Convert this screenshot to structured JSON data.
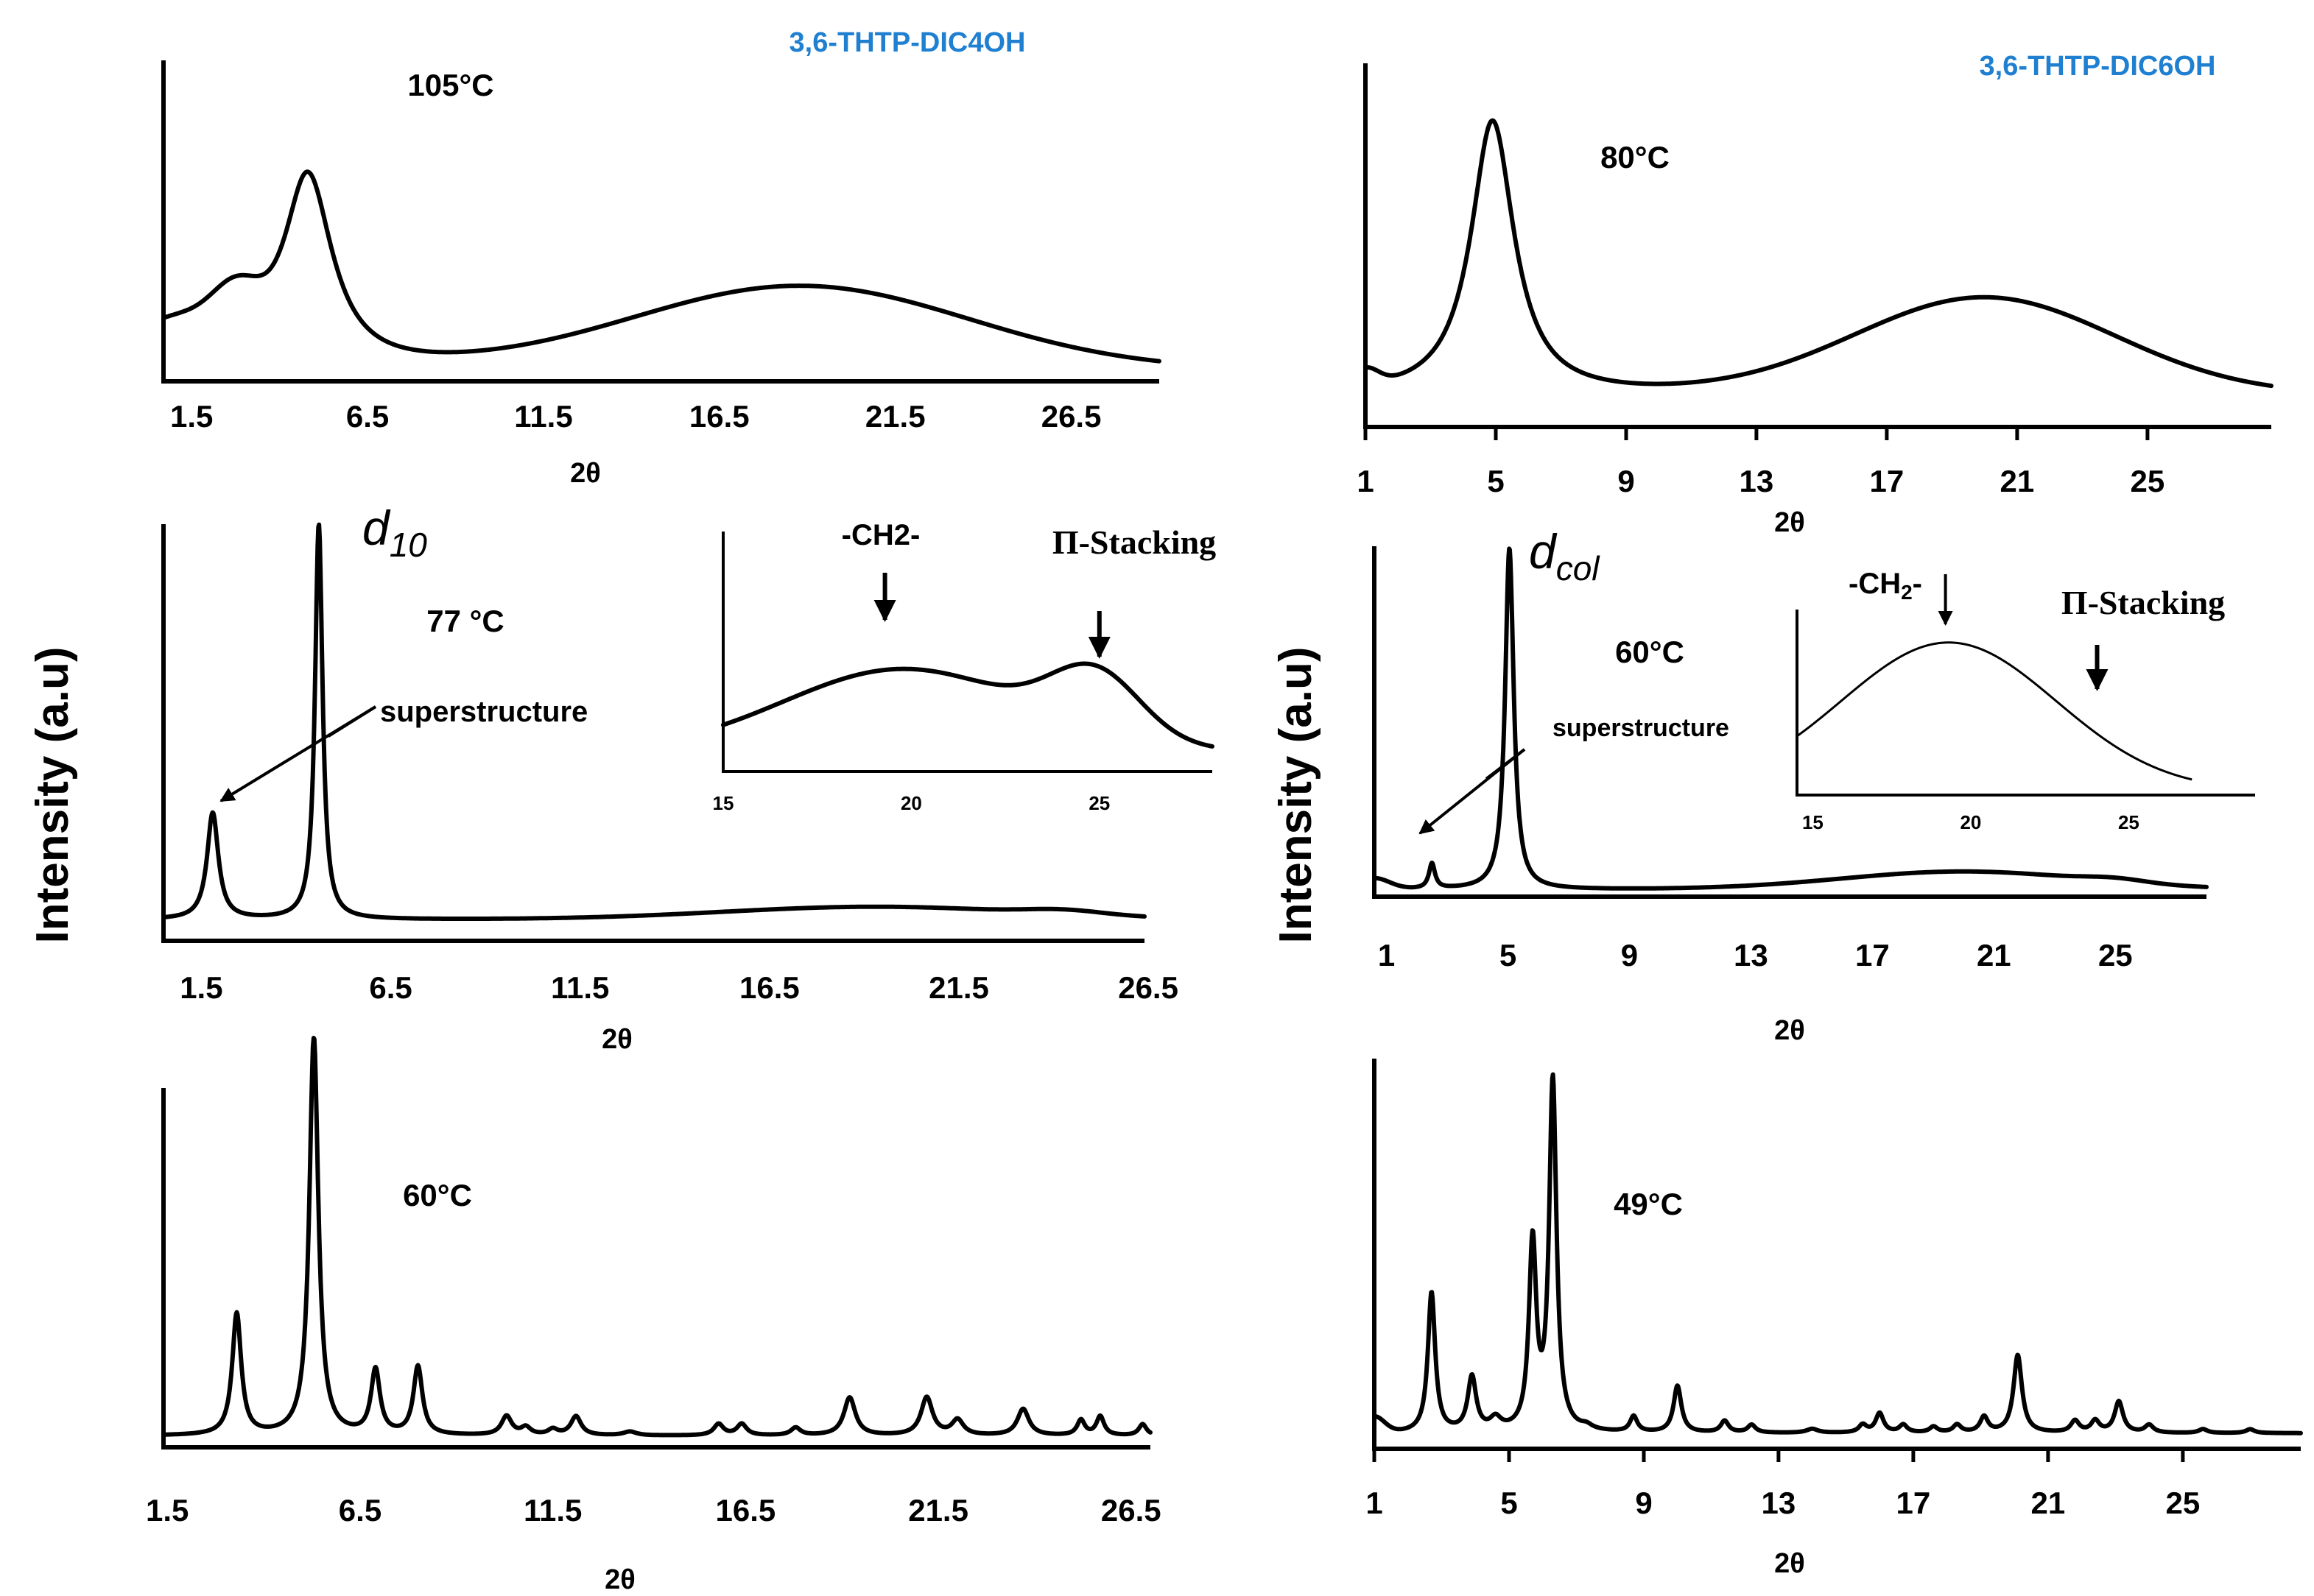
{
  "figure": {
    "left_compound": "3,6-THTP-DIC4OH",
    "right_compound": "3,6-THTP-DIC6OH",
    "y_axis_label": "Intensity (a.u)",
    "colors": {
      "compound_label": "#1f7fd0",
      "curve": "#000000"
    }
  },
  "chart_data": [
    {
      "id": "c4_105",
      "type": "line",
      "title": "105°C",
      "xlabel": "2θ",
      "xticks": [
        1.5,
        6.5,
        11.5,
        16.5,
        21.5,
        26.5
      ],
      "xtick_labels": [
        "1.5",
        "6.5",
        "11.5",
        "16.5",
        "21.5",
        "26.5"
      ],
      "xlim": [
        0.7,
        29.0
      ],
      "ylim": [
        0,
        1.05
      ],
      "baseline": 0.04,
      "peaks": [
        {
          "x": 4.8,
          "h": 0.7,
          "w": 0.85,
          "shape": "lorentz"
        },
        {
          "x": 2.8,
          "h": 0.16,
          "w": 0.7,
          "shape": "gauss"
        },
        {
          "x": 18.8,
          "h": 0.3,
          "w": 4.8,
          "shape": "gauss"
        },
        {
          "x": 1.0,
          "h": 0.16,
          "w": 1.4,
          "shape": "gauss"
        }
      ]
    },
    {
      "id": "c6_80",
      "type": "line",
      "title": "80°C",
      "xlabel": "2θ",
      "xticks": [
        1,
        5,
        9,
        13,
        17,
        21,
        25
      ],
      "xtick_labels": [
        "1",
        "5",
        "9",
        "13",
        "17",
        "21",
        "25"
      ],
      "xlim": [
        1,
        28.8
      ],
      "ylim": [
        0,
        1.05
      ],
      "baseline": 0.1,
      "peaks": [
        {
          "x": 4.9,
          "h": 0.85,
          "w": 0.8,
          "shape": "lorentz"
        },
        {
          "x": 20.0,
          "h": 0.3,
          "w": 4.0,
          "shape": "gauss"
        },
        {
          "x": 1.0,
          "h": 0.05,
          "w": 0.4,
          "shape": "gauss"
        }
      ]
    },
    {
      "id": "c4_77",
      "type": "line",
      "title": "77 °C",
      "xlabel": "2θ",
      "xticks": [
        1.5,
        6.5,
        11.5,
        16.5,
        21.5,
        26.5
      ],
      "xtick_labels": [
        "1.5",
        "6.5",
        "11.5",
        "16.5",
        "21.5",
        "26.5"
      ],
      "xlim": [
        0.5,
        26.4
      ],
      "ylim": [
        0,
        1.0
      ],
      "baseline": 0.05,
      "peaks": [
        {
          "x": 4.6,
          "h": 0.93,
          "w": 0.12,
          "shape": "lorentz"
        },
        {
          "x": 1.8,
          "h": 0.25,
          "w": 0.18,
          "shape": "lorentz"
        },
        {
          "x": 19.3,
          "h": 0.03,
          "w": 4.0,
          "shape": "gauss"
        },
        {
          "x": 24.3,
          "h": 0.01,
          "w": 1.0,
          "shape": "gauss"
        }
      ],
      "annotations": {
        "d_label": "d",
        "d_subscript": "10",
        "superstructure": "superstructure"
      },
      "inset": {
        "xticks": [
          15,
          20,
          25
        ],
        "xtick_labels": [
          "15",
          "20",
          "25"
        ],
        "xlim": [
          15,
          28
        ],
        "labels": {
          "ch2": "-CH2-",
          "pi_stacking": "Π-Stacking"
        },
        "arrow_x": {
          "ch2": 19.3,
          "pi_stacking": 25.0
        },
        "baseline": 0.1,
        "peaks": [
          {
            "x": 19.8,
            "h": 0.42,
            "w": 3.2,
            "shape": "gauss"
          },
          {
            "x": 24.9,
            "h": 0.32,
            "w": 1.2,
            "shape": "gauss"
          }
        ]
      }
    },
    {
      "id": "c6_60",
      "type": "line",
      "title": "60°C",
      "xlabel": "2θ",
      "xticks": [
        1,
        5,
        9,
        13,
        17,
        21,
        25
      ],
      "xtick_labels": [
        "1",
        "5",
        "9",
        "13",
        "17",
        "21",
        "25"
      ],
      "xlim": [
        0.6,
        28.0
      ],
      "ylim": [
        0,
        1.0
      ],
      "baseline": 0.02,
      "peaks": [
        {
          "x": 5.05,
          "h": 0.95,
          "w": 0.17,
          "shape": "lorentz"
        },
        {
          "x": 2.5,
          "h": 0.07,
          "w": 0.12,
          "shape": "lorentz"
        },
        {
          "x": 20.0,
          "h": 0.05,
          "w": 4.0,
          "shape": "gauss"
        },
        {
          "x": 25.0,
          "h": 0.01,
          "w": 1.0,
          "shape": "gauss"
        },
        {
          "x": 0.6,
          "h": 0.03,
          "w": 0.5,
          "shape": "gauss"
        }
      ],
      "annotations": {
        "d_label": "d",
        "d_subscript": "col",
        "superstructure": "superstructure"
      },
      "inset": {
        "xticks": [
          15,
          20,
          25
        ],
        "xtick_labels": [
          "15",
          "20",
          "25"
        ],
        "xlim": [
          14.5,
          29.0
        ],
        "labels": {
          "ch2_main": "-CH",
          "ch2_sub": "2",
          "ch2_tail": "-",
          "pi_stacking": "Π-Stacking"
        },
        "arrow_x": {
          "ch2": 19.2,
          "pi_stacking": 24.0
        },
        "curve_xlim": [
          14.5,
          27.0
        ],
        "baseline": 0.02,
        "peaks": [
          {
            "x": 19.3,
            "h": 0.72,
            "w": 3.4,
            "shape": "gauss"
          }
        ]
      }
    },
    {
      "id": "c4_60",
      "type": "line",
      "title": "60°C",
      "xlabel": "2θ",
      "xticks": [
        1.5,
        6.5,
        11.5,
        16.5,
        21.5,
        26.5
      ],
      "xtick_labels": [
        "1.5",
        "6.5",
        "11.5",
        "16.5",
        "21.5",
        "26.5"
      ],
      "xlim": [
        1.4,
        27.0
      ],
      "ylim": [
        0,
        1.0
      ],
      "baseline": 0.03,
      "peaks": [
        {
          "x": 5.3,
          "h": 1.05,
          "w": 0.14,
          "shape": "lorentz"
        },
        {
          "x": 3.3,
          "h": 0.32,
          "w": 0.14,
          "shape": "lorentz"
        },
        {
          "x": 6.9,
          "h": 0.17,
          "w": 0.14,
          "shape": "lorentz"
        },
        {
          "x": 8.0,
          "h": 0.18,
          "w": 0.14,
          "shape": "lorentz"
        },
        {
          "x": 10.3,
          "h": 0.05,
          "w": 0.16,
          "shape": "lorentz"
        },
        {
          "x": 10.8,
          "h": 0.02,
          "w": 0.15,
          "shape": "lorentz"
        },
        {
          "x": 11.5,
          "h": 0.015,
          "w": 0.15,
          "shape": "lorentz"
        },
        {
          "x": 12.1,
          "h": 0.05,
          "w": 0.16,
          "shape": "lorentz"
        },
        {
          "x": 13.5,
          "h": 0.01,
          "w": 0.2,
          "shape": "lorentz"
        },
        {
          "x": 15.8,
          "h": 0.03,
          "w": 0.15,
          "shape": "lorentz"
        },
        {
          "x": 16.4,
          "h": 0.03,
          "w": 0.15,
          "shape": "lorentz"
        },
        {
          "x": 17.8,
          "h": 0.02,
          "w": 0.15,
          "shape": "lorentz"
        },
        {
          "x": 19.2,
          "h": 0.1,
          "w": 0.18,
          "shape": "lorentz"
        },
        {
          "x": 21.2,
          "h": 0.1,
          "w": 0.18,
          "shape": "lorentz"
        },
        {
          "x": 22.0,
          "h": 0.04,
          "w": 0.18,
          "shape": "lorentz"
        },
        {
          "x": 23.7,
          "h": 0.07,
          "w": 0.18,
          "shape": "lorentz"
        },
        {
          "x": 25.2,
          "h": 0.04,
          "w": 0.12,
          "shape": "lorentz"
        },
        {
          "x": 25.7,
          "h": 0.05,
          "w": 0.12,
          "shape": "lorentz"
        },
        {
          "x": 26.8,
          "h": 0.03,
          "w": 0.12,
          "shape": "lorentz"
        }
      ]
    },
    {
      "id": "c6_49",
      "type": "line",
      "title": "49°C",
      "xlabel": "2θ",
      "xticks": [
        1,
        5,
        9,
        13,
        17,
        21,
        25
      ],
      "xtick_labels": [
        "1",
        "5",
        "9",
        "13",
        "17",
        "21",
        "25"
      ],
      "xlim": [
        1,
        28.5
      ],
      "ylim": [
        0,
        1.0
      ],
      "baseline": 0.04,
      "peaks": [
        {
          "x": 2.7,
          "h": 0.36,
          "w": 0.13,
          "shape": "lorentz"
        },
        {
          "x": 1.0,
          "h": 0.04,
          "w": 0.3,
          "shape": "gauss"
        },
        {
          "x": 3.9,
          "h": 0.14,
          "w": 0.15,
          "shape": "lorentz"
        },
        {
          "x": 4.6,
          "h": 0.03,
          "w": 0.2,
          "shape": "lorentz"
        },
        {
          "x": 5.7,
          "h": 0.48,
          "w": 0.13,
          "shape": "lorentz"
        },
        {
          "x": 6.3,
          "h": 0.9,
          "w": 0.13,
          "shape": "lorentz"
        },
        {
          "x": 7.3,
          "h": 0.01,
          "w": 0.2,
          "shape": "lorentz"
        },
        {
          "x": 8.7,
          "h": 0.04,
          "w": 0.13,
          "shape": "lorentz"
        },
        {
          "x": 10.0,
          "h": 0.12,
          "w": 0.14,
          "shape": "lorentz"
        },
        {
          "x": 11.4,
          "h": 0.03,
          "w": 0.14,
          "shape": "lorentz"
        },
        {
          "x": 12.2,
          "h": 0.02,
          "w": 0.14,
          "shape": "lorentz"
        },
        {
          "x": 14.0,
          "h": 0.01,
          "w": 0.2,
          "shape": "lorentz"
        },
        {
          "x": 15.5,
          "h": 0.02,
          "w": 0.14,
          "shape": "lorentz"
        },
        {
          "x": 16.0,
          "h": 0.05,
          "w": 0.14,
          "shape": "lorentz"
        },
        {
          "x": 16.7,
          "h": 0.02,
          "w": 0.14,
          "shape": "lorentz"
        },
        {
          "x": 17.6,
          "h": 0.015,
          "w": 0.14,
          "shape": "lorentz"
        },
        {
          "x": 18.3,
          "h": 0.02,
          "w": 0.14,
          "shape": "lorentz"
        },
        {
          "x": 19.1,
          "h": 0.04,
          "w": 0.14,
          "shape": "lorentz"
        },
        {
          "x": 20.1,
          "h": 0.2,
          "w": 0.15,
          "shape": "lorentz"
        },
        {
          "x": 21.8,
          "h": 0.03,
          "w": 0.15,
          "shape": "lorentz"
        },
        {
          "x": 22.4,
          "h": 0.03,
          "w": 0.15,
          "shape": "lorentz"
        },
        {
          "x": 23.1,
          "h": 0.08,
          "w": 0.15,
          "shape": "lorentz"
        },
        {
          "x": 24.0,
          "h": 0.02,
          "w": 0.15,
          "shape": "lorentz"
        },
        {
          "x": 25.6,
          "h": 0.01,
          "w": 0.15,
          "shape": "lorentz"
        },
        {
          "x": 27.0,
          "h": 0.01,
          "w": 0.15,
          "shape": "lorentz"
        }
      ]
    }
  ]
}
